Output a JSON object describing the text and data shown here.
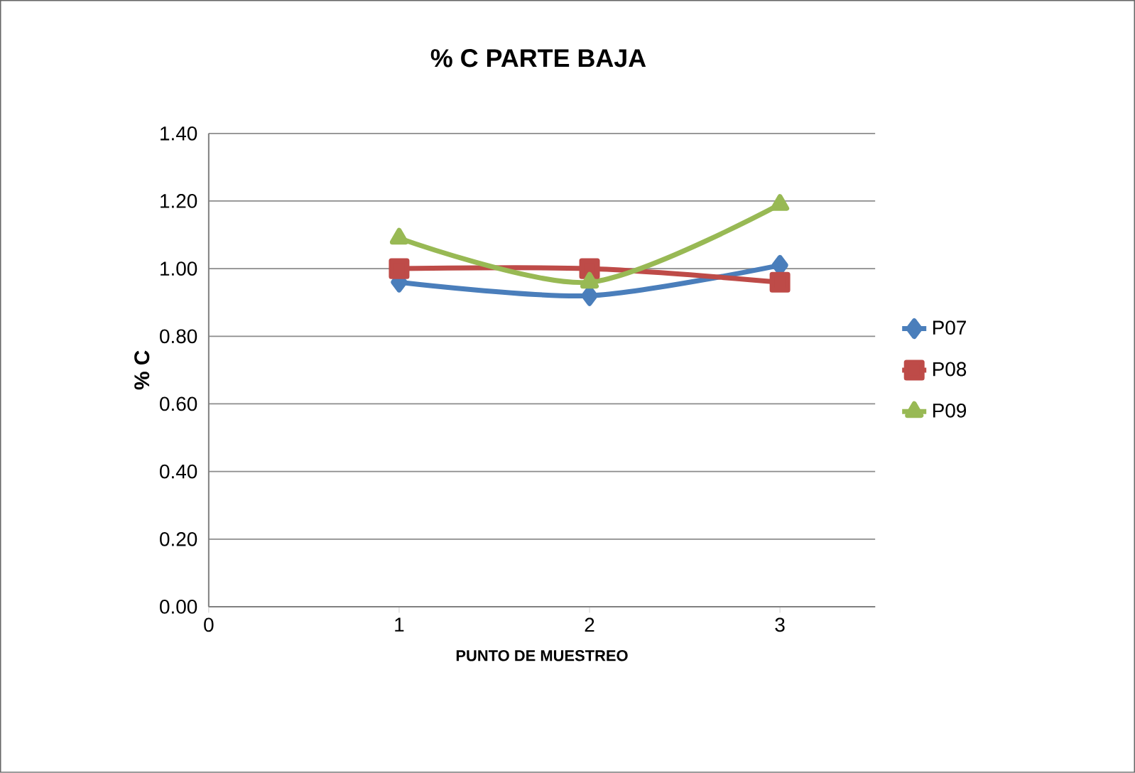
{
  "chart_data": {
    "type": "line",
    "title": "% C PARTE BAJA",
    "xlabel": "PUNTO DE MUESTREO",
    "ylabel": "% C",
    "x": [
      1,
      2,
      3
    ],
    "series": [
      {
        "name": "P07",
        "color": "#4a7ebb",
        "marker": "diamond",
        "values": [
          0.96,
          0.92,
          1.01
        ]
      },
      {
        "name": "P08",
        "color": "#be4b48",
        "marker": "square",
        "values": [
          1.0,
          1.0,
          0.96
        ]
      },
      {
        "name": "P09",
        "color": "#98b954",
        "marker": "triangle",
        "values": [
          1.09,
          0.96,
          1.19
        ]
      }
    ],
    "xlim": [
      0,
      3.5
    ],
    "xticks": [
      0,
      1,
      2,
      3
    ],
    "ylim": [
      0,
      1.4
    ],
    "yticks": [
      {
        "value": 0,
        "label": "0.00"
      },
      {
        "value": 0.2,
        "label": "0.20"
      },
      {
        "value": 0.4,
        "label": "0.40"
      },
      {
        "value": 0.6,
        "label": "0.60"
      },
      {
        "value": 0.8,
        "label": "0.80"
      },
      {
        "value": 1.0,
        "label": "1.00"
      },
      {
        "value": 1.2,
        "label": "1.20"
      },
      {
        "value": 1.4,
        "label": "1.40"
      }
    ],
    "grid": "y",
    "legend": "right",
    "line_style": "solid"
  }
}
